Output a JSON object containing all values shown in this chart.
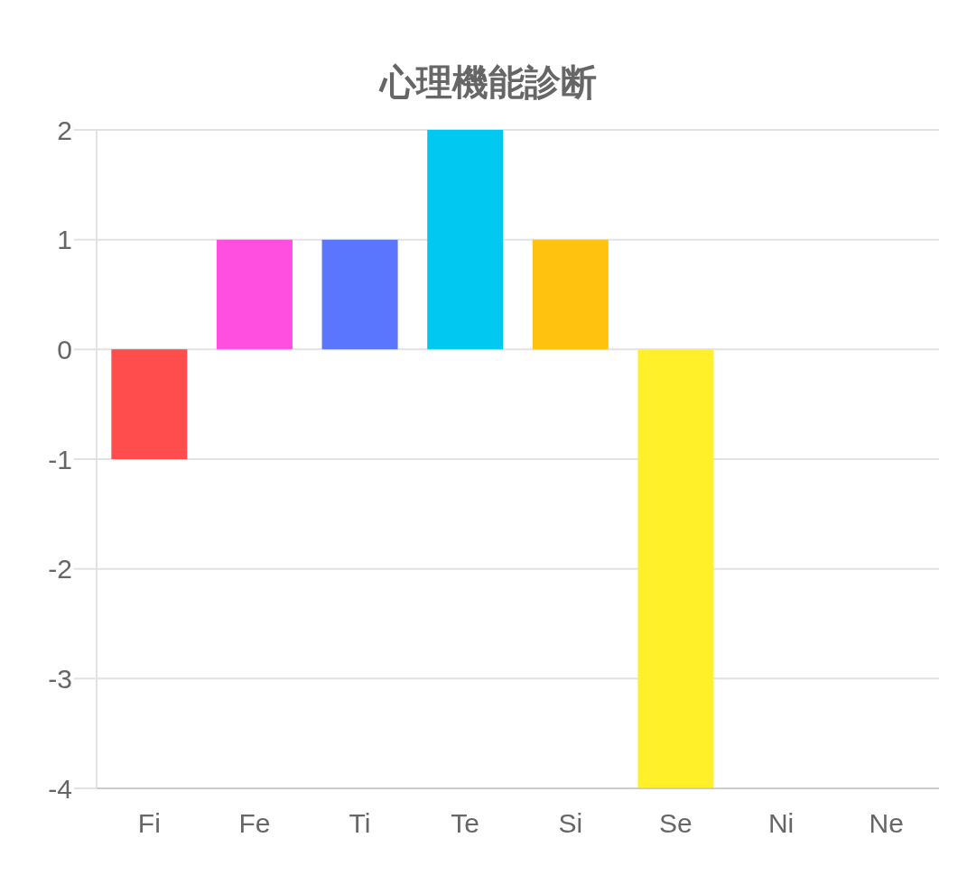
{
  "chart_data": {
    "type": "bar",
    "title": "心理機能診断",
    "categories": [
      "Fi",
      "Fe",
      "Ti",
      "Te",
      "Si",
      "Se",
      "Ni",
      "Ne"
    ],
    "values": [
      -1,
      1,
      1,
      2,
      1,
      -4,
      0,
      0
    ],
    "colors": [
      "#ff4d4d",
      "#ff4fe0",
      "#5a76ff",
      "#00c8f0",
      "#ffc20e",
      "#fff02a",
      "#4caf50",
      "#9c6bff"
    ],
    "ylim": [
      -4,
      2
    ],
    "yticks": [
      -4,
      -3,
      -2,
      -1,
      0,
      1,
      2
    ],
    "grid": "y",
    "legend": false
  }
}
